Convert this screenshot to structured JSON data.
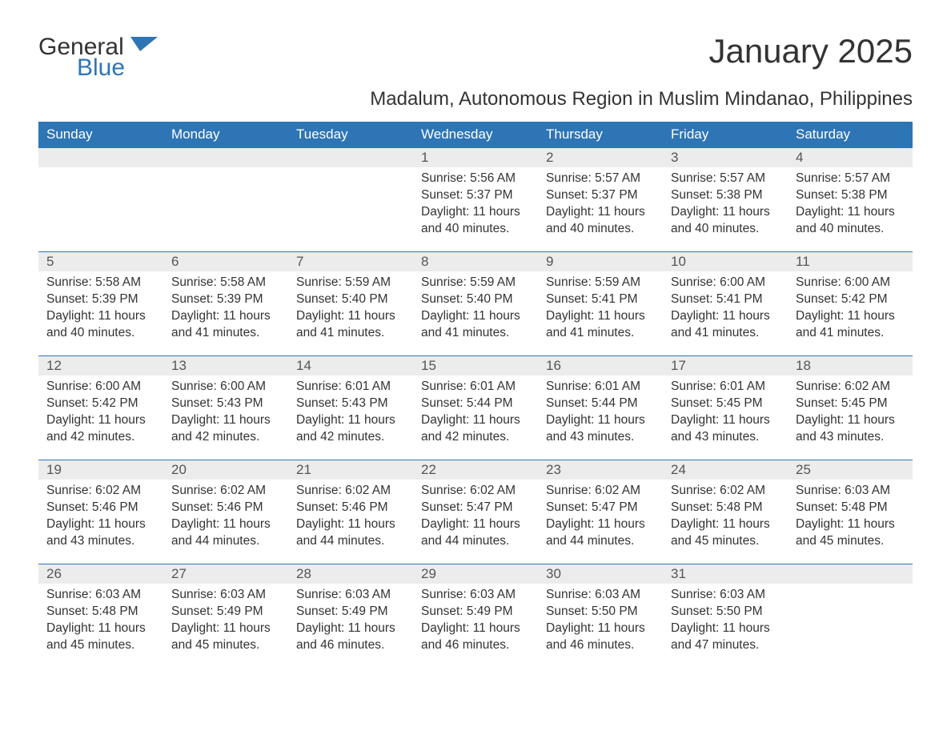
{
  "logo": {
    "text1": "General",
    "text2": "Blue",
    "color1": "#333333",
    "color2": "#2e75b6"
  },
  "title": "January 2025",
  "subtitle": "Madalum, Autonomous Region in Muslim Mindanao, Philippines",
  "colors": {
    "header_bg": "#2e75b6",
    "header_text": "#ffffff",
    "daynum_bg": "#ececec",
    "daynum_text": "#555555",
    "body_text": "#333333",
    "row_border": "#2e75b6",
    "page_bg": "#ffffff"
  },
  "typography": {
    "title_fontsize": 42,
    "subtitle_fontsize": 24,
    "header_fontsize": 17,
    "daynum_fontsize": 17,
    "body_fontsize": 15.5,
    "font_family": "Arial"
  },
  "layout": {
    "columns": 7,
    "rows": 5,
    "first_day_column": 3
  },
  "weekdays": [
    "Sunday",
    "Monday",
    "Tuesday",
    "Wednesday",
    "Thursday",
    "Friday",
    "Saturday"
  ],
  "days": [
    {
      "n": "1",
      "sunrise": "5:56 AM",
      "sunset": "5:37 PM",
      "daylight": "11 hours and 40 minutes."
    },
    {
      "n": "2",
      "sunrise": "5:57 AM",
      "sunset": "5:37 PM",
      "daylight": "11 hours and 40 minutes."
    },
    {
      "n": "3",
      "sunrise": "5:57 AM",
      "sunset": "5:38 PM",
      "daylight": "11 hours and 40 minutes."
    },
    {
      "n": "4",
      "sunrise": "5:57 AM",
      "sunset": "5:38 PM",
      "daylight": "11 hours and 40 minutes."
    },
    {
      "n": "5",
      "sunrise": "5:58 AM",
      "sunset": "5:39 PM",
      "daylight": "11 hours and 40 minutes."
    },
    {
      "n": "6",
      "sunrise": "5:58 AM",
      "sunset": "5:39 PM",
      "daylight": "11 hours and 41 minutes."
    },
    {
      "n": "7",
      "sunrise": "5:59 AM",
      "sunset": "5:40 PM",
      "daylight": "11 hours and 41 minutes."
    },
    {
      "n": "8",
      "sunrise": "5:59 AM",
      "sunset": "5:40 PM",
      "daylight": "11 hours and 41 minutes."
    },
    {
      "n": "9",
      "sunrise": "5:59 AM",
      "sunset": "5:41 PM",
      "daylight": "11 hours and 41 minutes."
    },
    {
      "n": "10",
      "sunrise": "6:00 AM",
      "sunset": "5:41 PM",
      "daylight": "11 hours and 41 minutes."
    },
    {
      "n": "11",
      "sunrise": "6:00 AM",
      "sunset": "5:42 PM",
      "daylight": "11 hours and 41 minutes."
    },
    {
      "n": "12",
      "sunrise": "6:00 AM",
      "sunset": "5:42 PM",
      "daylight": "11 hours and 42 minutes."
    },
    {
      "n": "13",
      "sunrise": "6:00 AM",
      "sunset": "5:43 PM",
      "daylight": "11 hours and 42 minutes."
    },
    {
      "n": "14",
      "sunrise": "6:01 AM",
      "sunset": "5:43 PM",
      "daylight": "11 hours and 42 minutes."
    },
    {
      "n": "15",
      "sunrise": "6:01 AM",
      "sunset": "5:44 PM",
      "daylight": "11 hours and 42 minutes."
    },
    {
      "n": "16",
      "sunrise": "6:01 AM",
      "sunset": "5:44 PM",
      "daylight": "11 hours and 43 minutes."
    },
    {
      "n": "17",
      "sunrise": "6:01 AM",
      "sunset": "5:45 PM",
      "daylight": "11 hours and 43 minutes."
    },
    {
      "n": "18",
      "sunrise": "6:02 AM",
      "sunset": "5:45 PM",
      "daylight": "11 hours and 43 minutes."
    },
    {
      "n": "19",
      "sunrise": "6:02 AM",
      "sunset": "5:46 PM",
      "daylight": "11 hours and 43 minutes."
    },
    {
      "n": "20",
      "sunrise": "6:02 AM",
      "sunset": "5:46 PM",
      "daylight": "11 hours and 44 minutes."
    },
    {
      "n": "21",
      "sunrise": "6:02 AM",
      "sunset": "5:46 PM",
      "daylight": "11 hours and 44 minutes."
    },
    {
      "n": "22",
      "sunrise": "6:02 AM",
      "sunset": "5:47 PM",
      "daylight": "11 hours and 44 minutes."
    },
    {
      "n": "23",
      "sunrise": "6:02 AM",
      "sunset": "5:47 PM",
      "daylight": "11 hours and 44 minutes."
    },
    {
      "n": "24",
      "sunrise": "6:02 AM",
      "sunset": "5:48 PM",
      "daylight": "11 hours and 45 minutes."
    },
    {
      "n": "25",
      "sunrise": "6:03 AM",
      "sunset": "5:48 PM",
      "daylight": "11 hours and 45 minutes."
    },
    {
      "n": "26",
      "sunrise": "6:03 AM",
      "sunset": "5:48 PM",
      "daylight": "11 hours and 45 minutes."
    },
    {
      "n": "27",
      "sunrise": "6:03 AM",
      "sunset": "5:49 PM",
      "daylight": "11 hours and 45 minutes."
    },
    {
      "n": "28",
      "sunrise": "6:03 AM",
      "sunset": "5:49 PM",
      "daylight": "11 hours and 46 minutes."
    },
    {
      "n": "29",
      "sunrise": "6:03 AM",
      "sunset": "5:49 PM",
      "daylight": "11 hours and 46 minutes."
    },
    {
      "n": "30",
      "sunrise": "6:03 AM",
      "sunset": "5:50 PM",
      "daylight": "11 hours and 46 minutes."
    },
    {
      "n": "31",
      "sunrise": "6:03 AM",
      "sunset": "5:50 PM",
      "daylight": "11 hours and 47 minutes."
    }
  ],
  "labels": {
    "sunrise": "Sunrise:",
    "sunset": "Sunset:",
    "daylight": "Daylight:"
  }
}
